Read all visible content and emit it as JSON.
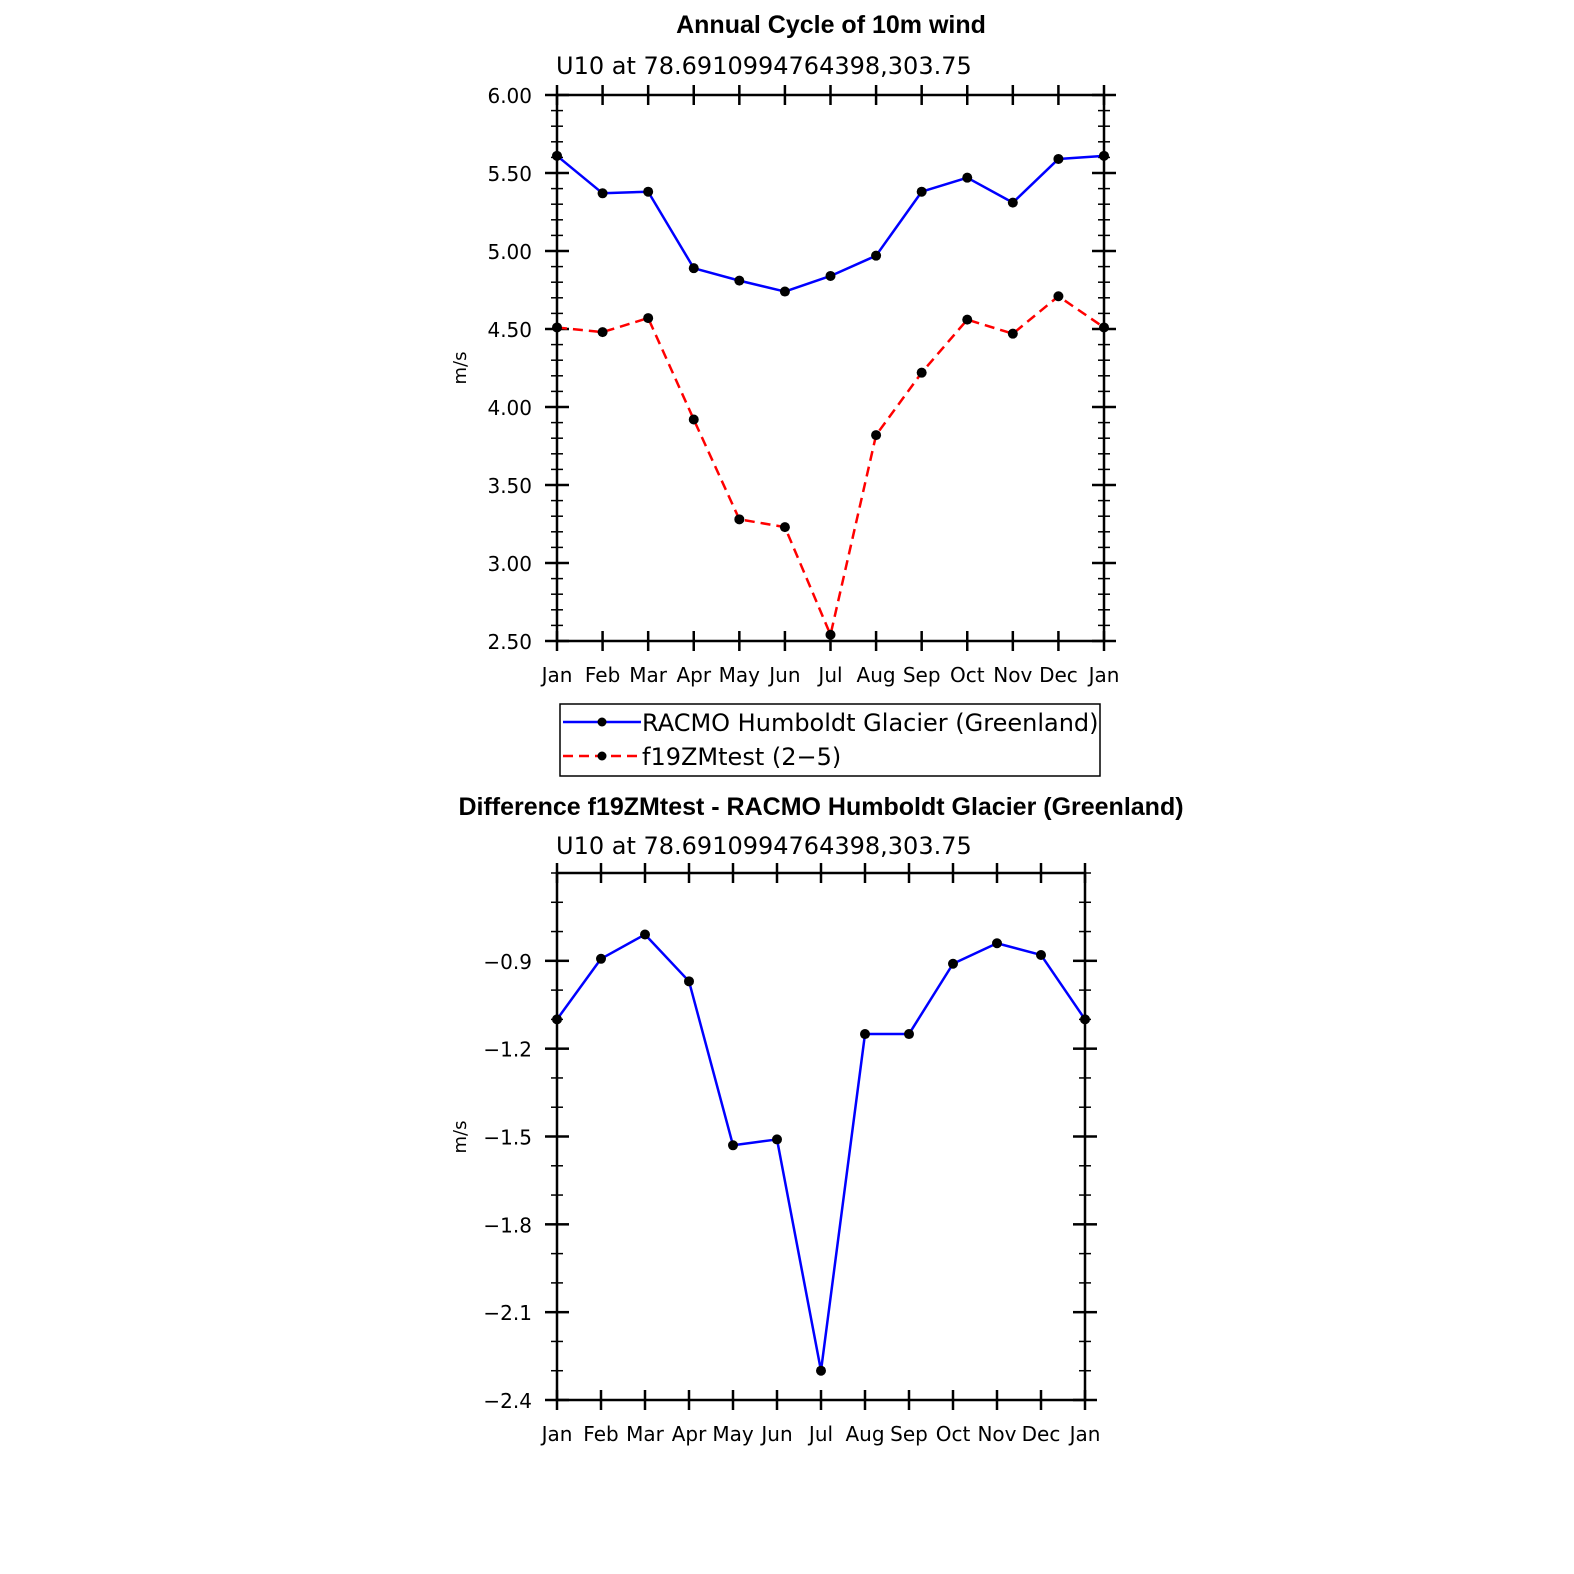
{
  "chart_data": [
    {
      "type": "line",
      "title": "Annual Cycle of 10m wind",
      "subtitle": "U10  at  78.6910994764398,303.75",
      "ylabel": "m/s",
      "xlabel": "",
      "categories": [
        "Jan",
        "Feb",
        "Mar",
        "Apr",
        "May",
        "Jun",
        "Jul",
        "Aug",
        "Sep",
        "Oct",
        "Nov",
        "Dec",
        "Jan"
      ],
      "ylim": [
        2.5,
        6.0
      ],
      "yticks": [
        2.5,
        3.0,
        3.5,
        4.0,
        4.5,
        5.0,
        5.5,
        6.0
      ],
      "ytick_labels": [
        "2.50",
        "3.00",
        "3.50",
        "4.00",
        "4.50",
        "5.00",
        "5.50",
        "6.00"
      ],
      "grid": false,
      "legend_position": "bottom",
      "series": [
        {
          "name": "RACMO Humboldt Glacier (Greenland)",
          "color": "#0000ff",
          "dash": "solid",
          "values": [
            5.61,
            5.37,
            5.38,
            4.89,
            4.81,
            4.74,
            4.84,
            4.97,
            5.38,
            5.47,
            5.31,
            5.59,
            5.61
          ]
        },
        {
          "name": "f19ZMtest (2−5)",
          "color": "#ff0000",
          "dash": "dashed",
          "values": [
            4.51,
            4.48,
            4.57,
            3.92,
            3.28,
            3.23,
            2.54,
            3.82,
            4.22,
            4.56,
            4.47,
            4.71,
            4.51
          ]
        }
      ]
    },
    {
      "type": "line",
      "title": "Difference f19ZMtest - RACMO Humboldt Glacier (Greenland)",
      "subtitle": "U10  at  78.6910994764398,303.75",
      "ylabel": "m/s",
      "xlabel": "",
      "categories": [
        "Jan",
        "Feb",
        "Mar",
        "Apr",
        "May",
        "Jun",
        "Jul",
        "Aug",
        "Sep",
        "Oct",
        "Nov",
        "Dec",
        "Jan"
      ],
      "ylim": [
        -2.4,
        -0.6
      ],
      "yticks": [
        -2.4,
        -2.1,
        -1.8,
        -1.5,
        -1.2,
        -0.9
      ],
      "ytick_labels": [
        "−2.4",
        "−2.1",
        "−1.8",
        "−1.5",
        "−1.2",
        "−0.9"
      ],
      "grid": false,
      "series": [
        {
          "name": "",
          "color": "#0000ff",
          "dash": "solid",
          "values": [
            -1.1,
            -0.893,
            -0.81,
            -0.97,
            -1.53,
            -1.51,
            -2.3,
            -1.15,
            -1.15,
            -0.91,
            -0.84,
            -0.88,
            -1.1
          ]
        }
      ]
    }
  ]
}
